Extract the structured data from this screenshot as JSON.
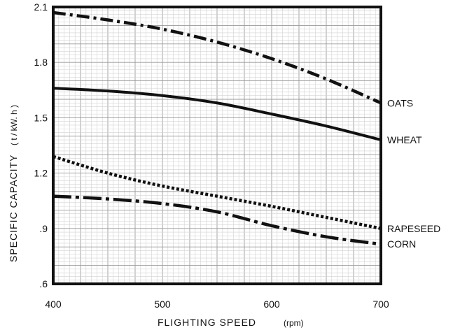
{
  "chart_data": {
    "type": "line",
    "title": "",
    "xlabel": "FLIGHTING SPEED",
    "xunit": "(rpm)",
    "ylabel": "SPECIFIC CAPACITY",
    "yunit": "( t / kW. h )",
    "xlim": [
      400,
      700
    ],
    "ylim": [
      0.6,
      2.1
    ],
    "x_ticks": [
      400,
      500,
      600,
      700
    ],
    "x_tick_labels": [
      "400",
      "500",
      "600",
      "700"
    ],
    "y_ticks": [
      0.6,
      0.9,
      1.2,
      1.5,
      1.8,
      2.1
    ],
    "y_tick_labels": [
      ".6",
      ".9",
      "1.2",
      "1.5",
      "1.8",
      "2.1"
    ],
    "grid": true,
    "series": [
      {
        "name": "OATS",
        "line_style": "dash-dot",
        "x": [
          400,
          450,
          500,
          550,
          600,
          650,
          700
        ],
        "y": [
          2.07,
          2.03,
          1.98,
          1.91,
          1.82,
          1.71,
          1.58
        ]
      },
      {
        "name": "WHEAT",
        "line_style": "solid",
        "x": [
          400,
          450,
          500,
          550,
          600,
          650,
          700
        ],
        "y": [
          1.66,
          1.645,
          1.62,
          1.58,
          1.52,
          1.455,
          1.38
        ]
      },
      {
        "name": "RAPESEED",
        "line_style": "dotted",
        "x": [
          400,
          450,
          500,
          550,
          600,
          650,
          700
        ],
        "y": [
          1.29,
          1.2,
          1.13,
          1.075,
          1.02,
          0.96,
          0.9
        ]
      },
      {
        "name": "CORN",
        "line_style": "long-dash-dot",
        "x": [
          400,
          450,
          500,
          550,
          600,
          650,
          700
        ],
        "y": [
          1.075,
          1.06,
          1.035,
          0.99,
          0.915,
          0.855,
          0.815
        ]
      }
    ]
  }
}
